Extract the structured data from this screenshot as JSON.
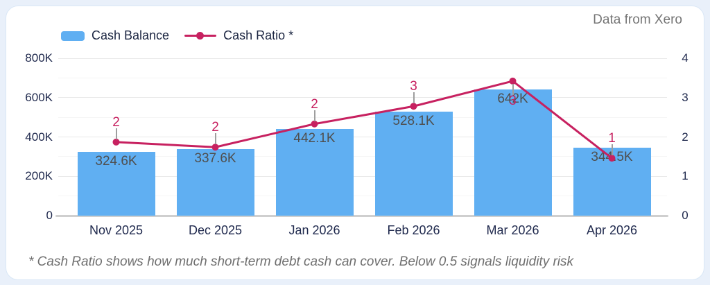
{
  "source_label": "Data from Xero",
  "legend": {
    "items": [
      {
        "label": "Cash Balance",
        "type": "bar",
        "color": "#60AFF2"
      },
      {
        "label": "Cash Ratio *",
        "type": "line",
        "color": "#C72160"
      }
    ]
  },
  "footnote": "* Cash Ratio shows how much short-term debt cash can cover. Below 0.5 signals liquidity risk",
  "chart_data": {
    "type": "combo-bar-line",
    "categories": [
      "Nov 2025",
      "Dec 2025",
      "Jan 2026",
      "Feb 2026",
      "Mar 2026",
      "Apr 2026"
    ],
    "series": [
      {
        "name": "Cash Balance",
        "type": "bar",
        "axis": "left",
        "color": "#60AFF2",
        "values": [
          324600,
          337600,
          442100,
          528100,
          642000,
          344500
        ],
        "value_labels": [
          "324.6K",
          "337.6K",
          "442.1K",
          "528.1K",
          "642K",
          "344.5K"
        ]
      },
      {
        "name": "Cash Ratio *",
        "type": "line",
        "axis": "right",
        "color": "#C72160",
        "values": [
          1.87,
          1.74,
          2.33,
          2.78,
          3.42,
          1.46
        ],
        "value_labels": [
          "2",
          "2",
          "2",
          "3",
          "3",
          "1"
        ],
        "label_placement": [
          "above",
          "above",
          "above",
          "above",
          "below",
          "above"
        ]
      }
    ],
    "left_axis": {
      "min": 0,
      "max": 800000,
      "ticks": [
        "800K",
        "600K",
        "400K",
        "200K",
        "0"
      ]
    },
    "right_axis": {
      "min": 0,
      "max": 4,
      "ticks": [
        "4",
        "3",
        "2",
        "1",
        "0"
      ]
    },
    "grid": {
      "horizontal_major": true,
      "horizontal_minor": true
    },
    "legend_position": "top-left"
  },
  "colors": {
    "page_bg": "#E9F0FA",
    "card_bg": "#FFFFFF",
    "card_border": "#D9E7F6",
    "bar": "#60AFF2",
    "line": "#C72160",
    "axis_text": "#202A4E",
    "bar_label_text": "#4F4F4F",
    "grid_major": "#E9E9E9",
    "grid_minor": "#F5F5F5",
    "baseline": "#CFCFCF",
    "muted_text": "#757575",
    "leader": "#9E9E9E"
  }
}
